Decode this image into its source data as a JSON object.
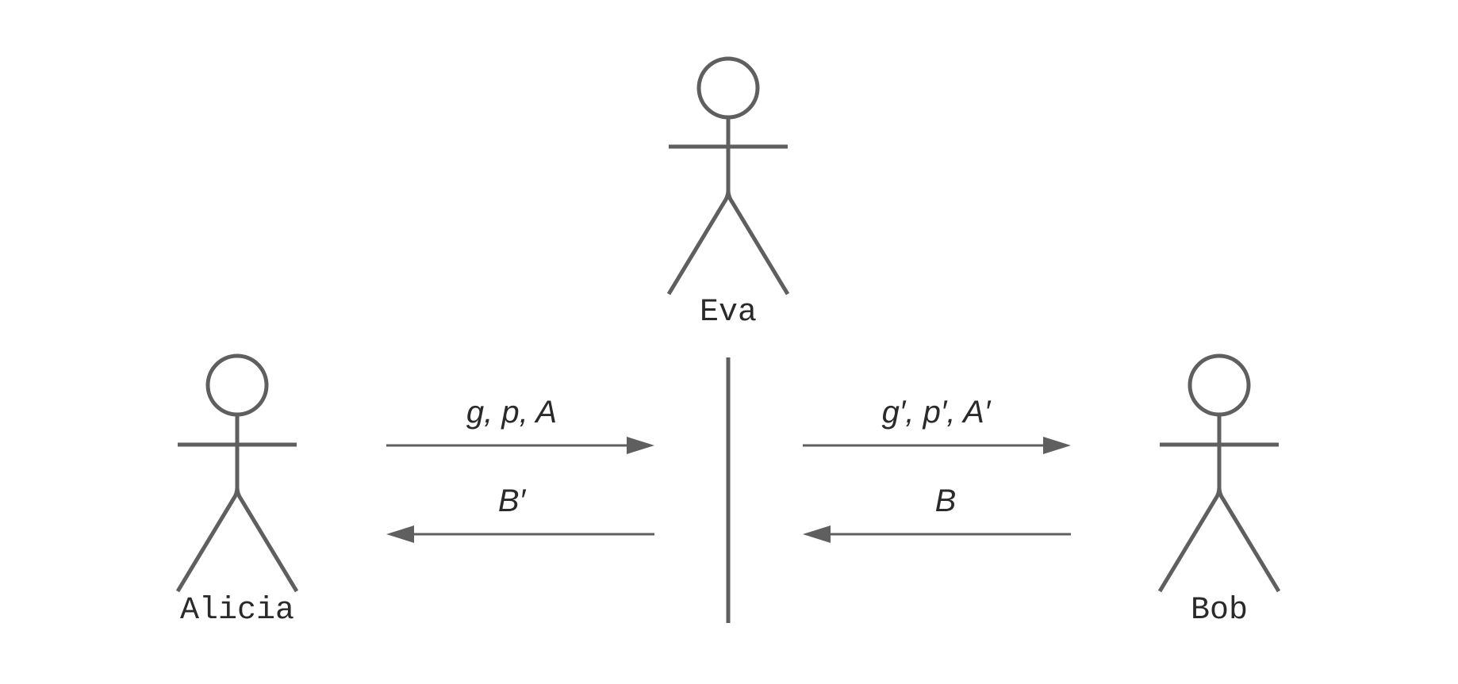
{
  "actors": {
    "eva": {
      "name": "Eva"
    },
    "alicia": {
      "name": "Alicia"
    },
    "bob": {
      "name": "Bob"
    }
  },
  "messages": {
    "alicia_to_eva": {
      "label": "g, p, A",
      "direction": "right"
    },
    "eva_to_alicia": {
      "label": "B′",
      "direction": "left"
    },
    "eva_to_bob": {
      "label": "g′, p′, A′",
      "direction": "right"
    },
    "bob_to_eva": {
      "label": "B",
      "direction": "left"
    }
  },
  "colors": {
    "stroke": "#5f5f5f",
    "text": "#2a2a2a",
    "background": "#ffffff"
  }
}
